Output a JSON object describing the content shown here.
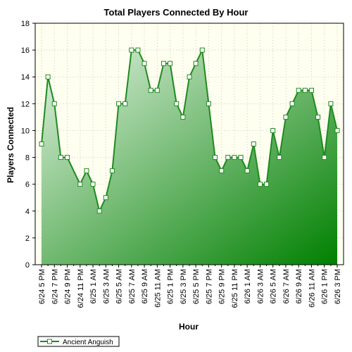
{
  "chart_data": {
    "type": "area",
    "title": "Total Players Connected By Hour",
    "xlabel": "Hour",
    "ylabel": "Players Connected",
    "ylim": [
      0,
      18
    ],
    "yticks": [
      0,
      2,
      4,
      6,
      8,
      10,
      12,
      14,
      16,
      18
    ],
    "grid": true,
    "legend_position": "bottom-left",
    "colors": {
      "line": "#1f8a1f",
      "fill_light": "#e2f2e2",
      "fill_dark": "#008000",
      "plot_bg": "#fffff0"
    },
    "x": [
      "6/24 5 PM",
      "6/24 6 PM",
      "6/24 7 PM",
      "6/24 8 PM",
      "6/24 9 PM",
      "6/24 10 PM",
      "6/24 11 PM",
      "6/25 12 AM",
      "6/25 1 AM",
      "6/25 2 AM",
      "6/25 3 AM",
      "6/25 4 AM",
      "6/25 5 AM",
      "6/25 6 AM",
      "6/25 7 AM",
      "6/25 8 AM",
      "6/25 9 AM",
      "6/25 10 AM",
      "6/25 11 AM",
      "6/25 12 PM",
      "6/25 1 PM",
      "6/25 2 PM",
      "6/25 3 PM",
      "6/25 4 PM",
      "6/25 5 PM",
      "6/25 6 PM",
      "6/25 7 PM",
      "6/25 8 PM",
      "6/25 9 PM",
      "6/25 10 PM",
      "6/25 11 PM",
      "6/26 12 AM",
      "6/26 1 AM",
      "6/26 2 AM",
      "6/26 3 AM",
      "6/26 4 AM",
      "6/26 5 AM",
      "6/26 6 AM",
      "6/26 7 AM",
      "6/26 8 AM",
      "6/26 9 AM",
      "6/26 10 AM",
      "6/26 11 AM",
      "6/26 12 PM",
      "6/26 1 PM",
      "6/26 2 PM",
      "6/26 3 PM"
    ],
    "tick_labels": [
      "6/24 5 PM",
      "6/24 7 PM",
      "6/24 9 PM",
      "6/24 11 PM",
      "6/25 1 AM",
      "6/25 3 AM",
      "6/25 5 AM",
      "6/25 7 AM",
      "6/25 9 AM",
      "6/25 11 AM",
      "6/25 1 PM",
      "6/25 3 PM",
      "6/25 5 PM",
      "6/25 7 PM",
      "6/25 9 PM",
      "6/25 11 PM",
      "6/26 1 AM",
      "6/26 3 AM",
      "6/26 5 AM",
      "6/26 7 AM",
      "6/26 9 AM",
      "6/26 11 AM",
      "6/26 1 PM",
      "6/26 3 PM"
    ],
    "series": [
      {
        "name": "Ancient Anguish",
        "values": [
          9,
          14,
          12,
          8,
          8,
          null,
          6,
          7,
          6,
          4,
          5,
          7,
          12,
          12,
          16,
          16,
          15,
          13,
          13,
          15,
          15,
          12,
          11,
          14,
          15,
          16,
          12,
          8,
          7,
          8,
          8,
          8,
          7,
          9,
          6,
          6,
          10,
          8,
          11,
          12,
          13,
          13,
          13,
          11,
          8,
          12,
          10
        ]
      }
    ]
  }
}
